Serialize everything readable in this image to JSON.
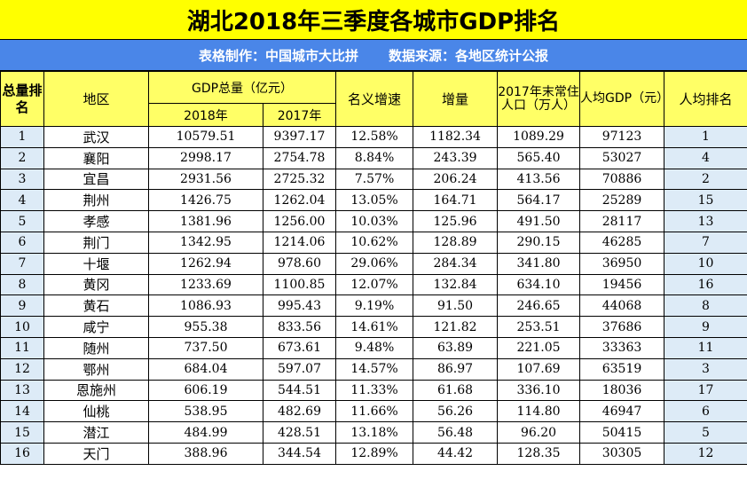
{
  "title": "湖北2018年三季度各城市GDP排名",
  "subtitle": {
    "maker": "表格制作：中国城市大比拼",
    "source": "数据来源：各地区统计公报"
  },
  "headers": {
    "rank": "总量排名",
    "region": "地区",
    "gdp_total": "GDP总量（亿元）",
    "y2018": "2018年",
    "y2017": "2017年",
    "growth": "名义增速",
    "increase": "增量",
    "population": "2017年末常住人口（万人）",
    "per_capita": "人均GDP（元）",
    "per_capita_rank": "人均排名"
  },
  "rows": [
    {
      "rank": "1",
      "city": "武汉",
      "gdp2018": "10579.51",
      "gdp2017": "9397.17",
      "growth": "12.58%",
      "increase": "1182.34",
      "pop": "1089.29",
      "pcgdp": "97123",
      "pcrank": "1"
    },
    {
      "rank": "2",
      "city": "襄阳",
      "gdp2018": "2998.17",
      "gdp2017": "2754.78",
      "growth": "8.84%",
      "increase": "243.39",
      "pop": "565.40",
      "pcgdp": "53027",
      "pcrank": "4"
    },
    {
      "rank": "3",
      "city": "宜昌",
      "gdp2018": "2931.56",
      "gdp2017": "2725.32",
      "growth": "7.57%",
      "increase": "206.24",
      "pop": "413.56",
      "pcgdp": "70886",
      "pcrank": "2"
    },
    {
      "rank": "4",
      "city": "荆州",
      "gdp2018": "1426.75",
      "gdp2017": "1262.04",
      "growth": "13.05%",
      "increase": "164.71",
      "pop": "564.17",
      "pcgdp": "25289",
      "pcrank": "15"
    },
    {
      "rank": "5",
      "city": "孝感",
      "gdp2018": "1381.96",
      "gdp2017": "1256.00",
      "growth": "10.03%",
      "increase": "125.96",
      "pop": "491.50",
      "pcgdp": "28117",
      "pcrank": "13"
    },
    {
      "rank": "6",
      "city": "荆门",
      "gdp2018": "1342.95",
      "gdp2017": "1214.06",
      "growth": "10.62%",
      "increase": "128.89",
      "pop": "290.15",
      "pcgdp": "46285",
      "pcrank": "7"
    },
    {
      "rank": "7",
      "city": "十堰",
      "gdp2018": "1262.94",
      "gdp2017": "978.60",
      "growth": "29.06%",
      "increase": "284.34",
      "pop": "341.80",
      "pcgdp": "36950",
      "pcrank": "10"
    },
    {
      "rank": "8",
      "city": "黄冈",
      "gdp2018": "1233.69",
      "gdp2017": "1100.85",
      "growth": "12.07%",
      "increase": "132.84",
      "pop": "634.10",
      "pcgdp": "19456",
      "pcrank": "16"
    },
    {
      "rank": "9",
      "city": "黄石",
      "gdp2018": "1086.93",
      "gdp2017": "995.43",
      "growth": "9.19%",
      "increase": "91.50",
      "pop": "246.65",
      "pcgdp": "44068",
      "pcrank": "8"
    },
    {
      "rank": "10",
      "city": "咸宁",
      "gdp2018": "955.38",
      "gdp2017": "833.56",
      "growth": "14.61%",
      "increase": "121.82",
      "pop": "253.51",
      "pcgdp": "37686",
      "pcrank": "9"
    },
    {
      "rank": "11",
      "city": "随州",
      "gdp2018": "737.50",
      "gdp2017": "673.61",
      "growth": "9.48%",
      "increase": "63.89",
      "pop": "221.05",
      "pcgdp": "33363",
      "pcrank": "11"
    },
    {
      "rank": "12",
      "city": "鄂州",
      "gdp2018": "684.04",
      "gdp2017": "597.07",
      "growth": "14.57%",
      "increase": "86.97",
      "pop": "107.69",
      "pcgdp": "63519",
      "pcrank": "3"
    },
    {
      "rank": "13",
      "city": "恩施州",
      "gdp2018": "606.19",
      "gdp2017": "544.51",
      "growth": "11.33%",
      "increase": "61.68",
      "pop": "336.10",
      "pcgdp": "18036",
      "pcrank": "17"
    },
    {
      "rank": "14",
      "city": "仙桃",
      "gdp2018": "538.95",
      "gdp2017": "482.69",
      "growth": "11.66%",
      "increase": "56.26",
      "pop": "114.80",
      "pcgdp": "46947",
      "pcrank": "6"
    },
    {
      "rank": "15",
      "city": "潜江",
      "gdp2018": "484.99",
      "gdp2017": "428.51",
      "growth": "13.18%",
      "increase": "56.48",
      "pop": "96.20",
      "pcgdp": "50415",
      "pcrank": "5"
    },
    {
      "rank": "16",
      "city": "天门",
      "gdp2018": "388.96",
      "gdp2017": "344.54",
      "growth": "12.89%",
      "increase": "44.42",
      "pop": "128.35",
      "pcgdp": "30305",
      "pcrank": "12"
    }
  ],
  "colors": {
    "title_bg": "#ffff00",
    "subtitle_bg": "#4a86e8",
    "header_bg": "#ffff66",
    "rank_col_bg": "#ddebf7"
  }
}
